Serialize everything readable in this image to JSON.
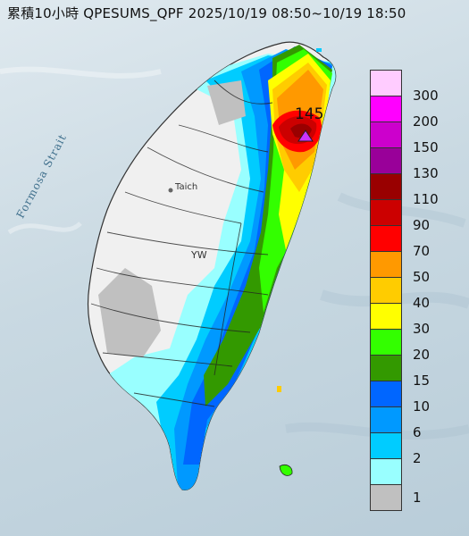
{
  "title": "累積10小時 QPESUMS_QPF 2025/10/19 08:50~10/19 18:50",
  "map": {
    "strait_label": "Formosa Strait",
    "max_value_label": "145",
    "place_labels": [
      "Taich",
      "YW"
    ]
  },
  "legend": {
    "items": [
      {
        "label": "300",
        "color": "#ffccff"
      },
      {
        "label": "200",
        "color": "#ff00ff"
      },
      {
        "label": "150",
        "color": "#cc00cc"
      },
      {
        "label": "130",
        "color": "#990099"
      },
      {
        "label": "110",
        "color": "#990000"
      },
      {
        "label": "90",
        "color": "#cc0000"
      },
      {
        "label": "70",
        "color": "#ff0000"
      },
      {
        "label": "50",
        "color": "#ff9900"
      },
      {
        "label": "40",
        "color": "#ffcc00"
      },
      {
        "label": "30",
        "color": "#ffff00"
      },
      {
        "label": "20",
        "color": "#33ff00"
      },
      {
        "label": "15",
        "color": "#339900"
      },
      {
        "label": "10",
        "color": "#0066ff"
      },
      {
        "label": "6",
        "color": "#0099ff"
      },
      {
        "label": "2",
        "color": "#00ccff"
      },
      {
        "label": "1",
        "color": "#99ffff"
      },
      {
        "label": "",
        "color": "#c0c0c0"
      }
    ]
  }
}
